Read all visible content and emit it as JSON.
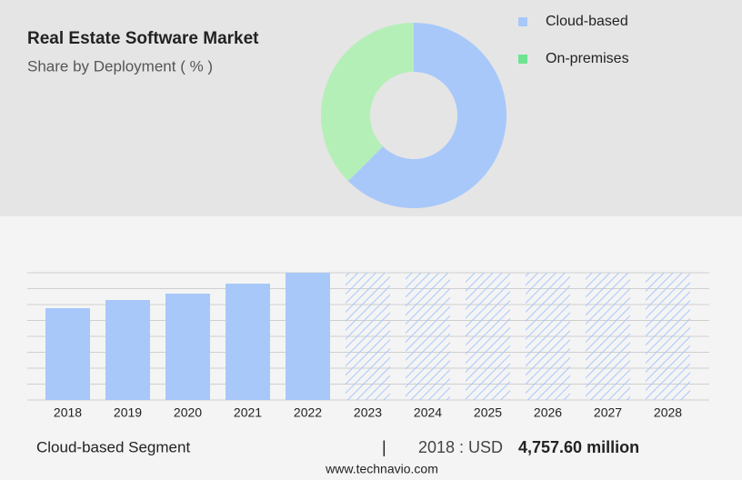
{
  "chart_data": [
    {
      "type": "pie",
      "title": "Real Estate Software Market",
      "subtitle": "Share by Deployment ( % )",
      "categories": [
        "Cloud-based",
        "On-premises"
      ],
      "values": [
        62.5,
        37.5
      ],
      "colors": [
        "#a8c8fa",
        "#b5efb8"
      ],
      "legend_colors": [
        "#a8c8fa",
        "#6fe391"
      ],
      "legend": "top-right"
    },
    {
      "type": "bar",
      "categories": [
        "2018",
        "2019",
        "2020",
        "2021",
        "2022",
        "2023",
        "2024",
        "2025",
        "2026",
        "2027",
        "2028"
      ],
      "values": [
        4757.6,
        5181,
        5511,
        6030,
        6595,
        null,
        null,
        null,
        null,
        null,
        null
      ],
      "color": "#a8c8fa",
      "ylim": [
        0,
        6595
      ],
      "grid": true
    }
  ],
  "footer": {
    "segment": "Cloud-based Segment",
    "separator": "|",
    "label": "2018 : USD",
    "value": "4,757.60 million",
    "source": "www.technavio.com"
  }
}
